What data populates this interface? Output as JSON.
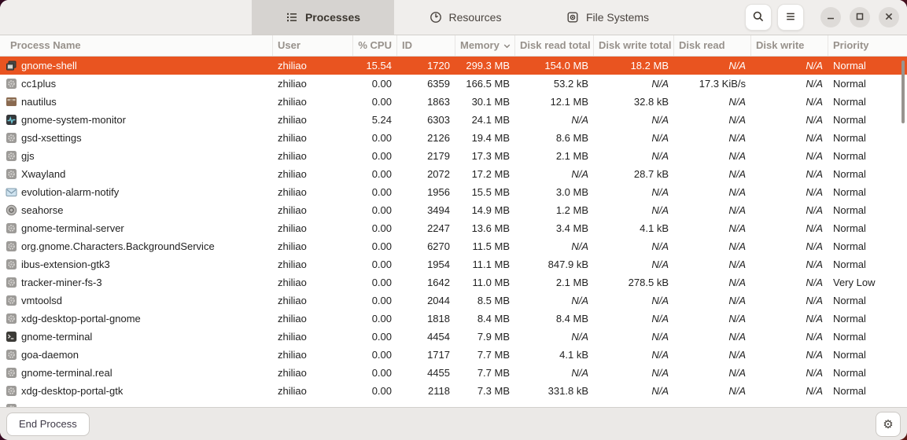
{
  "tabs": [
    {
      "label": "Processes",
      "icon": "process-list-icon",
      "active": true
    },
    {
      "label": "Resources",
      "icon": "gauge-icon",
      "active": false
    },
    {
      "label": "File Systems",
      "icon": "disk-icon",
      "active": false
    }
  ],
  "titlebar_icons": [
    "search-icon",
    "hamburger-menu-icon",
    "minimize-icon",
    "maximize-icon",
    "close-icon"
  ],
  "columns": [
    {
      "key": "name",
      "label": "Process Name"
    },
    {
      "key": "user",
      "label": "User"
    },
    {
      "key": "cpu",
      "label": "% CPU"
    },
    {
      "key": "id",
      "label": "ID"
    },
    {
      "key": "mem",
      "label": "Memory",
      "sort": "desc"
    },
    {
      "key": "drt",
      "label": "Disk read total"
    },
    {
      "key": "dwt",
      "label": "Disk write total"
    },
    {
      "key": "dr",
      "label": "Disk read"
    },
    {
      "key": "dw",
      "label": "Disk write"
    },
    {
      "key": "prio",
      "label": "Priority"
    }
  ],
  "processes": [
    {
      "icon": "shell-windows-icon",
      "name": "gnome-shell",
      "user": "zhiliao",
      "cpu": "15.54",
      "id": "1720",
      "mem": "299.3 MB",
      "drt": "154.0 MB",
      "dwt": "18.2 MB",
      "dr": "N/A",
      "dw": "N/A",
      "prio": "Normal",
      "selected": true
    },
    {
      "icon": "gear-app-icon",
      "name": "cc1plus",
      "user": "zhiliao",
      "cpu": "0.00",
      "id": "6359",
      "mem": "166.5 MB",
      "drt": "53.2 kB",
      "dwt": "N/A",
      "dr": "17.3 KiB/s",
      "dw": "N/A",
      "prio": "Normal"
    },
    {
      "icon": "file-cabinet-icon",
      "name": "nautilus",
      "user": "zhiliao",
      "cpu": "0.00",
      "id": "1863",
      "mem": "30.1 MB",
      "drt": "12.1 MB",
      "dwt": "32.8 kB",
      "dr": "N/A",
      "dw": "N/A",
      "prio": "Normal"
    },
    {
      "icon": "system-monitor-icon",
      "name": "gnome-system-monitor",
      "user": "zhiliao",
      "cpu": "5.24",
      "id": "6303",
      "mem": "24.1 MB",
      "drt": "N/A",
      "dwt": "N/A",
      "dr": "N/A",
      "dw": "N/A",
      "prio": "Normal"
    },
    {
      "icon": "gear-app-icon",
      "name": "gsd-xsettings",
      "user": "zhiliao",
      "cpu": "0.00",
      "id": "2126",
      "mem": "19.4 MB",
      "drt": "8.6 MB",
      "dwt": "N/A",
      "dr": "N/A",
      "dw": "N/A",
      "prio": "Normal"
    },
    {
      "icon": "gear-app-icon",
      "name": "gjs",
      "user": "zhiliao",
      "cpu": "0.00",
      "id": "2179",
      "mem": "17.3 MB",
      "drt": "2.1 MB",
      "dwt": "N/A",
      "dr": "N/A",
      "dw": "N/A",
      "prio": "Normal"
    },
    {
      "icon": "gear-app-icon",
      "name": "Xwayland",
      "user": "zhiliao",
      "cpu": "0.00",
      "id": "2072",
      "mem": "17.2 MB",
      "drt": "N/A",
      "dwt": "28.7 kB",
      "dr": "N/A",
      "dw": "N/A",
      "prio": "Normal"
    },
    {
      "icon": "mail-icon",
      "name": "evolution-alarm-notify",
      "user": "zhiliao",
      "cpu": "0.00",
      "id": "1956",
      "mem": "15.5 MB",
      "drt": "3.0 MB",
      "dwt": "N/A",
      "dr": "N/A",
      "dw": "N/A",
      "prio": "Normal"
    },
    {
      "icon": "seahorse-icon",
      "name": "seahorse",
      "user": "zhiliao",
      "cpu": "0.00",
      "id": "3494",
      "mem": "14.9 MB",
      "drt": "1.2 MB",
      "dwt": "N/A",
      "dr": "N/A",
      "dw": "N/A",
      "prio": "Normal"
    },
    {
      "icon": "gear-app-icon",
      "name": "gnome-terminal-server",
      "user": "zhiliao",
      "cpu": "0.00",
      "id": "2247",
      "mem": "13.6 MB",
      "drt": "3.4 MB",
      "dwt": "4.1 kB",
      "dr": "N/A",
      "dw": "N/A",
      "prio": "Normal"
    },
    {
      "icon": "gear-app-icon",
      "name": "org.gnome.Characters.BackgroundService",
      "user": "zhiliao",
      "cpu": "0.00",
      "id": "6270",
      "mem": "11.5 MB",
      "drt": "N/A",
      "dwt": "N/A",
      "dr": "N/A",
      "dw": "N/A",
      "prio": "Normal"
    },
    {
      "icon": "gear-app-icon",
      "name": "ibus-extension-gtk3",
      "user": "zhiliao",
      "cpu": "0.00",
      "id": "1954",
      "mem": "11.1 MB",
      "drt": "847.9 kB",
      "dwt": "N/A",
      "dr": "N/A",
      "dw": "N/A",
      "prio": "Normal"
    },
    {
      "icon": "gear-app-icon",
      "name": "tracker-miner-fs-3",
      "user": "zhiliao",
      "cpu": "0.00",
      "id": "1642",
      "mem": "11.0 MB",
      "drt": "2.1 MB",
      "dwt": "278.5 kB",
      "dr": "N/A",
      "dw": "N/A",
      "prio": "Very Low"
    },
    {
      "icon": "gear-app-icon",
      "name": "vmtoolsd",
      "user": "zhiliao",
      "cpu": "0.00",
      "id": "2044",
      "mem": "8.5 MB",
      "drt": "N/A",
      "dwt": "N/A",
      "dr": "N/A",
      "dw": "N/A",
      "prio": "Normal"
    },
    {
      "icon": "gear-app-icon",
      "name": "xdg-desktop-portal-gnome",
      "user": "zhiliao",
      "cpu": "0.00",
      "id": "1818",
      "mem": "8.4 MB",
      "drt": "8.4 MB",
      "dwt": "N/A",
      "dr": "N/A",
      "dw": "N/A",
      "prio": "Normal"
    },
    {
      "icon": "terminal-icon",
      "name": "gnome-terminal",
      "user": "zhiliao",
      "cpu": "0.00",
      "id": "4454",
      "mem": "7.9 MB",
      "drt": "N/A",
      "dwt": "N/A",
      "dr": "N/A",
      "dw": "N/A",
      "prio": "Normal"
    },
    {
      "icon": "gear-app-icon",
      "name": "goa-daemon",
      "user": "zhiliao",
      "cpu": "0.00",
      "id": "1717",
      "mem": "7.7 MB",
      "drt": "4.1 kB",
      "dwt": "N/A",
      "dr": "N/A",
      "dw": "N/A",
      "prio": "Normal"
    },
    {
      "icon": "gear-app-icon",
      "name": "gnome-terminal.real",
      "user": "zhiliao",
      "cpu": "0.00",
      "id": "4455",
      "mem": "7.7 MB",
      "drt": "N/A",
      "dwt": "N/A",
      "dr": "N/A",
      "dw": "N/A",
      "prio": "Normal"
    },
    {
      "icon": "gear-app-icon",
      "name": "xdg-desktop-portal-gtk",
      "user": "zhiliao",
      "cpu": "0.00",
      "id": "2118",
      "mem": "7.3 MB",
      "drt": "331.8 kB",
      "dwt": "N/A",
      "dr": "N/A",
      "dw": "N/A",
      "prio": "Normal"
    }
  ],
  "partial_row": {
    "icon": "gear-app-icon",
    "name": "",
    "user": "",
    "cpu": "",
    "id": "",
    "mem": "",
    "drt": "",
    "dwt": "",
    "dr": "",
    "dw": "",
    "prio": ""
  },
  "footer": {
    "end_process_label": "End Process",
    "settings_icon": "gear-icon"
  },
  "colors": {
    "accent": "#e95420",
    "header_text": "#97918b",
    "titlebar_bg": "#f0eeec",
    "selected_tab_bg": "#d6d3d0"
  }
}
